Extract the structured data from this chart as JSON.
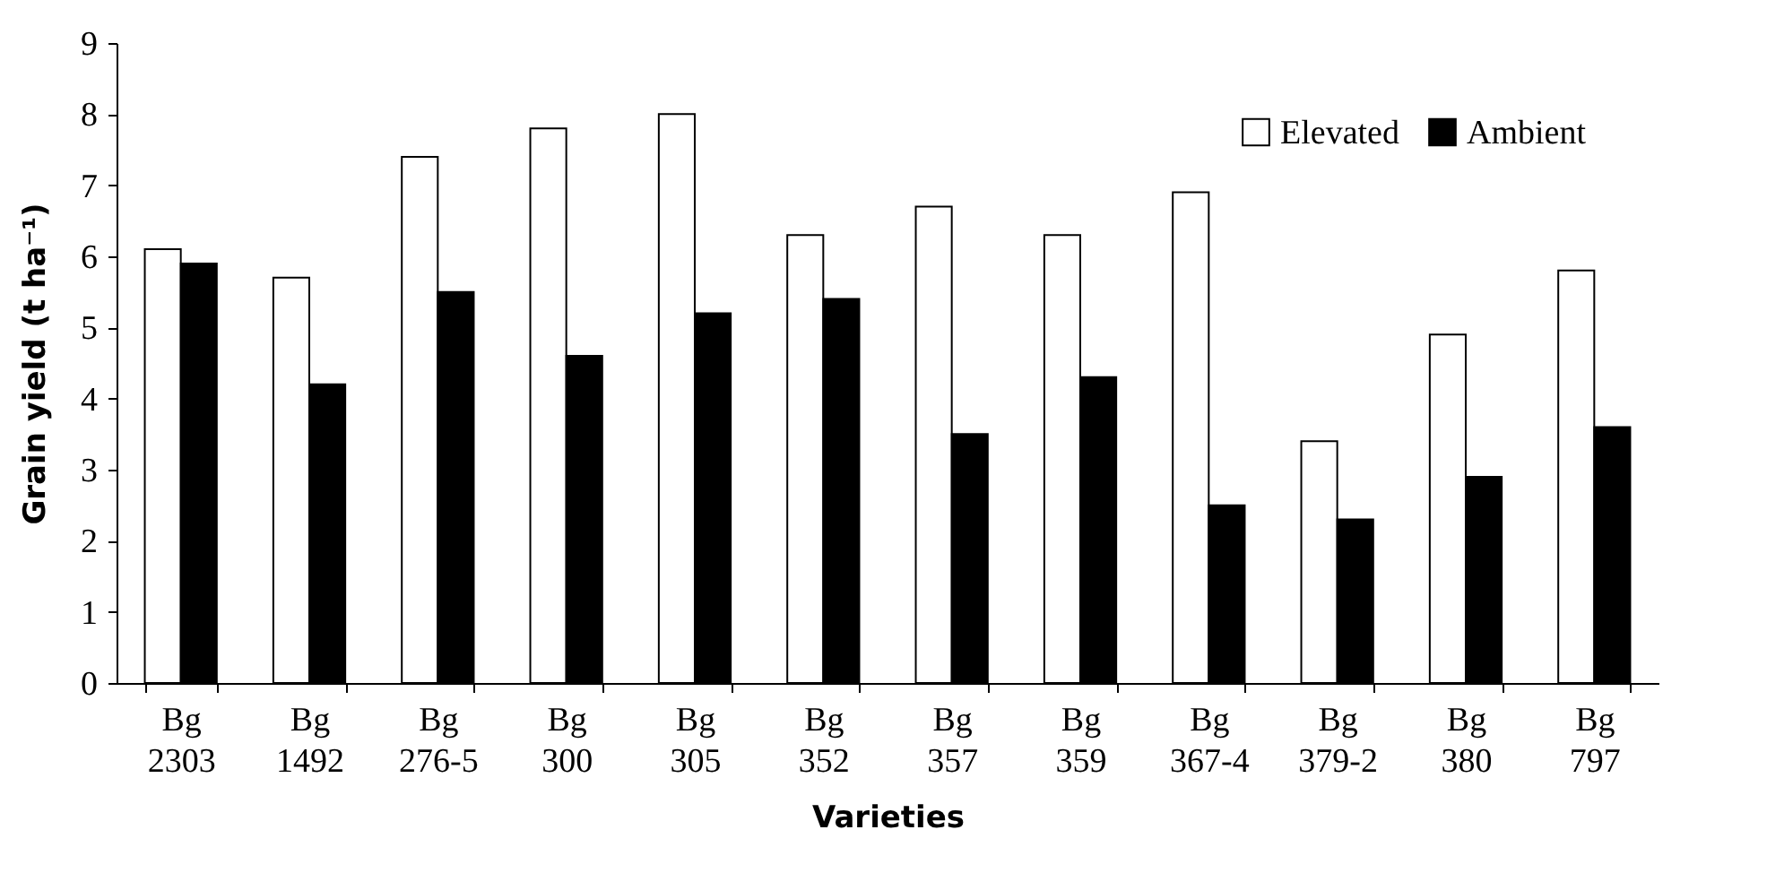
{
  "chart_data": {
    "type": "bar",
    "xlabel": "Varieties",
    "ylabel": "Grain yield (t ha⁻¹)",
    "categories": [
      "Bg 2303",
      "Bg 1492",
      "Bg 276-5",
      "Bg 300",
      "Bg 305",
      "Bg 352",
      "Bg 357",
      "Bg 359",
      "Bg 367-4",
      "Bg 379-2",
      "Bg 380",
      "Bg 797"
    ],
    "series": [
      {
        "name": "Elevated",
        "color": "#ffffff",
        "values": [
          6.1,
          5.7,
          7.4,
          7.8,
          8.0,
          6.3,
          6.7,
          6.3,
          6.9,
          3.4,
          4.9,
          5.8
        ]
      },
      {
        "name": "Ambient",
        "color": "#000000",
        "values": [
          5.9,
          4.2,
          5.5,
          4.6,
          5.2,
          5.4,
          3.5,
          4.3,
          2.5,
          2.3,
          2.9,
          3.6
        ]
      }
    ],
    "ylim": [
      0,
      9
    ],
    "yticks": [
      0,
      1,
      2,
      3,
      4,
      5,
      6,
      7,
      8,
      9
    ],
    "grid": false,
    "legend": "top right"
  }
}
